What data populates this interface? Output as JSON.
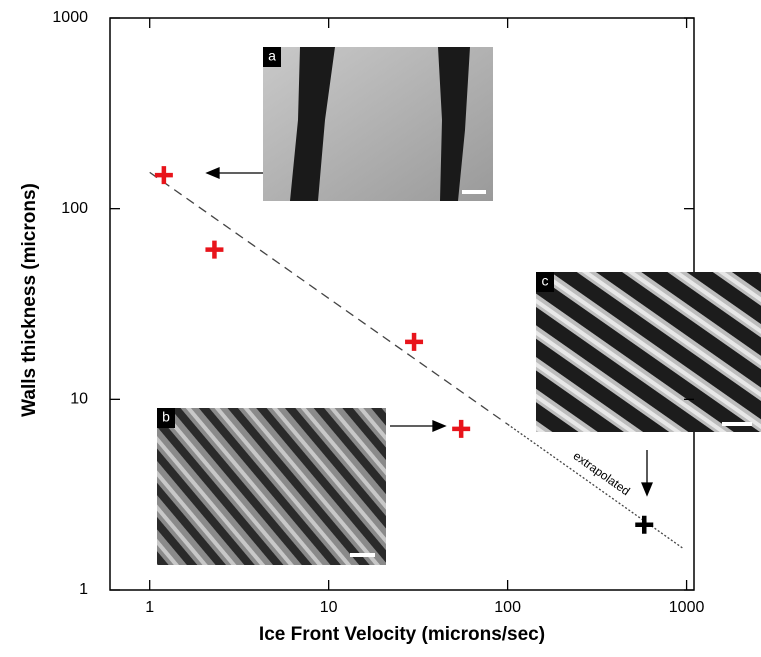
{
  "chart_data": {
    "type": "scatter",
    "x_label": "Ice Front Velocity (microns/sec)",
    "y_label": "Walls thickness (microns)",
    "log_x": true,
    "log_y": true,
    "xlim": [
      0.6,
      1100
    ],
    "ylim": [
      1,
      1000
    ],
    "xticks": [
      1,
      10,
      100,
      1000
    ],
    "yticks": [
      1,
      10,
      100,
      1000
    ],
    "series": [
      {
        "color": "#e8141b",
        "x": [
          1.2,
          2.3,
          30,
          55
        ],
        "values": [
          150,
          61,
          20,
          7
        ]
      },
      {
        "color": "#000000",
        "x": [
          580
        ],
        "values": [
          2.2
        ]
      }
    ],
    "fit": {
      "x": [
        1,
        100
      ],
      "values": [
        155,
        7.4
      ],
      "color": "#444444"
    },
    "extrapolation": {
      "x": [
        100,
        950
      ],
      "values": [
        7.4,
        1.66
      ],
      "color": "#444444",
      "label": "extrapolated"
    },
    "insets": [
      {
        "label": "a"
      },
      {
        "label": "b"
      },
      {
        "label": "c"
      }
    ]
  }
}
